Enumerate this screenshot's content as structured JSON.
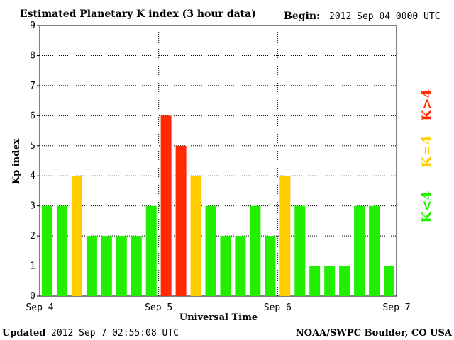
{
  "header": {
    "title": "Estimated Planetary K index (3 hour data)",
    "begin_label": "Begin:",
    "begin_value": "2012 Sep 04 0000 UTC"
  },
  "footer": {
    "updated_label": "Updated",
    "updated_value": "2012 Sep  7 02:55:08 UTC",
    "credit": "NOAA/SWPC Boulder, CO USA"
  },
  "legend": {
    "high": "K>4",
    "equal": "K=4",
    "low": "K<4"
  },
  "colors": {
    "low": "#22ee00",
    "equal": "#ffcc00",
    "high": "#ff2a00",
    "text": "#000000"
  },
  "chart_data": {
    "type": "bar",
    "title": "Estimated Planetary K index (3 hour data)",
    "xlabel": "Universal Time",
    "ylabel": "Kp index",
    "ylim": [
      0,
      9
    ],
    "yticks": [
      0,
      1,
      2,
      3,
      4,
      5,
      6,
      7,
      8,
      9
    ],
    "xlim": [
      "2012-09-04T00:00Z",
      "2012-09-07T00:00Z"
    ],
    "x_tick_labels": [
      "Sep 4",
      "Sep 5",
      "Sep 6",
      "Sep 7"
    ],
    "interval_hours": 3,
    "grid": true,
    "categories": [
      "Sep 4 00-03",
      "Sep 4 03-06",
      "Sep 4 06-09",
      "Sep 4 09-12",
      "Sep 4 12-15",
      "Sep 4 15-18",
      "Sep 4 18-21",
      "Sep 4 21-24",
      "Sep 5 00-03",
      "Sep 5 03-06",
      "Sep 5 06-09",
      "Sep 5 09-12",
      "Sep 5 12-15",
      "Sep 5 15-18",
      "Sep 5 18-21",
      "Sep 5 21-24",
      "Sep 6 00-03",
      "Sep 6 03-06",
      "Sep 6 06-09",
      "Sep 6 09-12",
      "Sep 6 12-15",
      "Sep 6 15-18",
      "Sep 6 18-21",
      "Sep 6 21-24"
    ],
    "values": [
      3,
      3,
      4,
      2,
      2,
      2,
      2,
      3,
      6,
      5,
      4,
      3,
      2,
      2,
      3,
      2,
      4,
      3,
      1,
      1,
      1,
      3,
      3,
      1
    ]
  }
}
